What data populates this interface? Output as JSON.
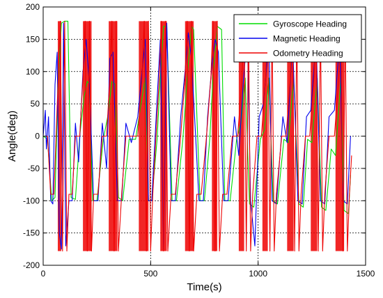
{
  "chart_data": {
    "type": "line",
    "title": "",
    "xlabel": "Time(s)",
    "ylabel": "Angle(deg)",
    "xlim": [
      0,
      1500
    ],
    "ylim": [
      -200,
      200
    ],
    "xticks": [
      0,
      500,
      1000,
      1500
    ],
    "xtick_labels": [
      "0",
      "500",
      "1000",
      "1500"
    ],
    "yticks": [
      -200,
      -150,
      -100,
      -50,
      0,
      50,
      100,
      150,
      200
    ],
    "ytick_labels": [
      "-200",
      "-150",
      "-100",
      "-50",
      "0",
      "50",
      "100",
      "150",
      "200"
    ],
    "grid": true,
    "legend_position": "top-right",
    "series": [
      {
        "name": "Gyroscope Heading",
        "color": "#00dd00",
        "points": [
          [
            0,
            0
          ],
          [
            20,
            -5
          ],
          [
            40,
            -100
          ],
          [
            55,
            -95
          ],
          [
            70,
            85
          ],
          [
            85,
            175
          ],
          [
            100,
            178
          ],
          [
            115,
            178
          ],
          [
            130,
            -95
          ],
          [
            150,
            -98
          ],
          [
            170,
            0
          ],
          [
            190,
            60
          ],
          [
            205,
            85
          ],
          [
            215,
            80
          ],
          [
            230,
            -100
          ],
          [
            250,
            -100
          ],
          [
            280,
            -5
          ],
          [
            300,
            30
          ],
          [
            320,
            85
          ],
          [
            335,
            80
          ],
          [
            350,
            -95
          ],
          [
            370,
            -100
          ],
          [
            400,
            -5
          ],
          [
            430,
            -5
          ],
          [
            460,
            60
          ],
          [
            475,
            90
          ],
          [
            490,
            -100
          ],
          [
            505,
            -100
          ],
          [
            530,
            -5
          ],
          [
            545,
            90
          ],
          [
            560,
            170
          ],
          [
            575,
            170
          ],
          [
            600,
            -100
          ],
          [
            620,
            -100
          ],
          [
            650,
            -5
          ],
          [
            670,
            90
          ],
          [
            690,
            170
          ],
          [
            700,
            165
          ],
          [
            730,
            -100
          ],
          [
            750,
            -100
          ],
          [
            775,
            -5
          ],
          [
            790,
            90
          ],
          [
            810,
            170
          ],
          [
            830,
            165
          ],
          [
            845,
            -100
          ],
          [
            870,
            -100
          ],
          [
            900,
            -5
          ],
          [
            920,
            20
          ],
          [
            940,
            90
          ],
          [
            960,
            -105
          ],
          [
            980,
            -110
          ],
          [
            1010,
            -5
          ],
          [
            1030,
            10
          ],
          [
            1050,
            90
          ],
          [
            1070,
            -100
          ],
          [
            1090,
            -105
          ],
          [
            1120,
            -5
          ],
          [
            1140,
            -10
          ],
          [
            1165,
            90
          ],
          [
            1190,
            -105
          ],
          [
            1210,
            -110
          ],
          [
            1230,
            -5
          ],
          [
            1250,
            -10
          ],
          [
            1275,
            90
          ],
          [
            1295,
            -110
          ],
          [
            1315,
            -115
          ],
          [
            1340,
            -20
          ],
          [
            1360,
            -30
          ],
          [
            1385,
            90
          ],
          [
            1400,
            -115
          ],
          [
            1420,
            -120
          ],
          [
            1430,
            -60
          ]
        ]
      },
      {
        "name": "Magnetic Heading",
        "color": "#0000ee",
        "points": [
          [
            0,
            0
          ],
          [
            10,
            40
          ],
          [
            15,
            -20
          ],
          [
            25,
            30
          ],
          [
            35,
            -100
          ],
          [
            45,
            -105
          ],
          [
            55,
            80
          ],
          [
            65,
            130
          ],
          [
            75,
            -150
          ],
          [
            85,
            -175
          ],
          [
            95,
            175
          ],
          [
            105,
            -170
          ],
          [
            120,
            -100
          ],
          [
            135,
            -100
          ],
          [
            150,
            20
          ],
          [
            165,
            -40
          ],
          [
            185,
            100
          ],
          [
            200,
            150
          ],
          [
            215,
            80
          ],
          [
            235,
            -100
          ],
          [
            255,
            -100
          ],
          [
            275,
            20
          ],
          [
            295,
            -50
          ],
          [
            310,
            120
          ],
          [
            325,
            130
          ],
          [
            345,
            -100
          ],
          [
            365,
            -100
          ],
          [
            385,
            20
          ],
          [
            410,
            -10
          ],
          [
            440,
            30
          ],
          [
            460,
            100
          ],
          [
            475,
            150
          ],
          [
            490,
            -100
          ],
          [
            505,
            -100
          ],
          [
            525,
            25
          ],
          [
            545,
            150
          ],
          [
            560,
            -175
          ],
          [
            575,
            175
          ],
          [
            595,
            -100
          ],
          [
            615,
            -100
          ],
          [
            640,
            30
          ],
          [
            660,
            100
          ],
          [
            675,
            160
          ],
          [
            690,
            120
          ],
          [
            725,
            -100
          ],
          [
            745,
            -100
          ],
          [
            765,
            30
          ],
          [
            785,
            110
          ],
          [
            800,
            150
          ],
          [
            815,
            130
          ],
          [
            840,
            -100
          ],
          [
            860,
            -100
          ],
          [
            890,
            30
          ],
          [
            910,
            -30
          ],
          [
            930,
            80
          ],
          [
            950,
            160
          ],
          [
            965,
            -100
          ],
          [
            985,
            -170
          ],
          [
            1005,
            30
          ],
          [
            1025,
            50
          ],
          [
            1050,
            150
          ],
          [
            1065,
            -100
          ],
          [
            1085,
            -105
          ],
          [
            1115,
            30
          ],
          [
            1135,
            -10
          ],
          [
            1160,
            150
          ],
          [
            1185,
            -100
          ],
          [
            1205,
            -105
          ],
          [
            1225,
            30
          ],
          [
            1245,
            40
          ],
          [
            1270,
            150
          ],
          [
            1290,
            -100
          ],
          [
            1310,
            -105
          ],
          [
            1330,
            30
          ],
          [
            1355,
            40
          ],
          [
            1380,
            150
          ],
          [
            1395,
            -100
          ],
          [
            1415,
            -105
          ],
          [
            1430,
            0
          ]
        ]
      },
      {
        "name": "Odometry Heading",
        "color": "#ee0000",
        "points": [
          [
            0,
            0
          ],
          [
            20,
            0
          ],
          [
            35,
            -90
          ],
          [
            50,
            -90
          ],
          [
            60,
            0
          ],
          [
            70,
            90
          ],
          [
            80,
            178
          ],
          [
            90,
            -178
          ],
          [
            100,
            178
          ],
          [
            110,
            -178
          ],
          [
            120,
            -90
          ],
          [
            135,
            -90
          ],
          [
            150,
            0
          ],
          [
            170,
            0
          ],
          [
            185,
            90
          ],
          [
            195,
            178
          ],
          [
            205,
            -178
          ],
          [
            215,
            178
          ],
          [
            225,
            -178
          ],
          [
            235,
            -90
          ],
          [
            255,
            -90
          ],
          [
            275,
            0
          ],
          [
            295,
            0
          ],
          [
            310,
            90
          ],
          [
            320,
            178
          ],
          [
            330,
            -178
          ],
          [
            340,
            178
          ],
          [
            350,
            -178
          ],
          [
            365,
            -90
          ],
          [
            385,
            0
          ],
          [
            410,
            0
          ],
          [
            440,
            0
          ],
          [
            460,
            90
          ],
          [
            470,
            178
          ],
          [
            480,
            -178
          ],
          [
            490,
            178
          ],
          [
            500,
            -178
          ],
          [
            510,
            -90
          ],
          [
            525,
            0
          ],
          [
            540,
            90
          ],
          [
            550,
            178
          ],
          [
            560,
            -178
          ],
          [
            570,
            178
          ],
          [
            580,
            -178
          ],
          [
            595,
            -90
          ],
          [
            615,
            -90
          ],
          [
            640,
            0
          ],
          [
            660,
            90
          ],
          [
            670,
            178
          ],
          [
            680,
            -178
          ],
          [
            690,
            178
          ],
          [
            700,
            -178
          ],
          [
            715,
            -90
          ],
          [
            735,
            -90
          ],
          [
            760,
            0
          ],
          [
            780,
            90
          ],
          [
            790,
            178
          ],
          [
            800,
            -178
          ],
          [
            810,
            178
          ],
          [
            820,
            -178
          ],
          [
            835,
            -90
          ],
          [
            855,
            -90
          ],
          [
            880,
            0
          ],
          [
            905,
            0
          ],
          [
            925,
            90
          ],
          [
            935,
            178
          ],
          [
            945,
            -178
          ],
          [
            955,
            178
          ],
          [
            965,
            -178
          ],
          [
            975,
            -90
          ],
          [
            995,
            0
          ],
          [
            1015,
            0
          ],
          [
            1035,
            90
          ],
          [
            1045,
            178
          ],
          [
            1055,
            -178
          ],
          [
            1065,
            178
          ],
          [
            1075,
            -178
          ],
          [
            1085,
            -90
          ],
          [
            1110,
            0
          ],
          [
            1130,
            0
          ],
          [
            1150,
            90
          ],
          [
            1160,
            178
          ],
          [
            1170,
            -178
          ],
          [
            1180,
            178
          ],
          [
            1190,
            -178
          ],
          [
            1200,
            -90
          ],
          [
            1220,
            0
          ],
          [
            1240,
            0
          ],
          [
            1260,
            90
          ],
          [
            1270,
            178
          ],
          [
            1280,
            -178
          ],
          [
            1290,
            178
          ],
          [
            1300,
            -178
          ],
          [
            1310,
            -90
          ],
          [
            1330,
            0
          ],
          [
            1355,
            0
          ],
          [
            1375,
            90
          ],
          [
            1385,
            178
          ],
          [
            1395,
            -178
          ],
          [
            1405,
            178
          ],
          [
            1415,
            -178
          ],
          [
            1425,
            -90
          ],
          [
            1435,
            -30
          ]
        ]
      }
    ],
    "filled_bands": [
      {
        "series": "Odometry Heading",
        "x_start": 68,
        "x_end": 84
      },
      {
        "series": "Odometry Heading",
        "x_start": 185,
        "x_end": 225
      },
      {
        "series": "Odometry Heading",
        "x_start": 305,
        "x_end": 345
      },
      {
        "series": "Odometry Heading",
        "x_start": 445,
        "x_end": 490
      },
      {
        "series": "Odometry Heading",
        "x_start": 545,
        "x_end": 575
      },
      {
        "series": "Odometry Heading",
        "x_start": 660,
        "x_end": 700
      },
      {
        "series": "Odometry Heading",
        "x_start": 785,
        "x_end": 810
      },
      {
        "series": "Odometry Heading",
        "x_start": 910,
        "x_end": 935
      },
      {
        "series": "Odometry Heading",
        "x_start": 1020,
        "x_end": 1045
      },
      {
        "series": "Odometry Heading",
        "x_start": 1135,
        "x_end": 1165
      },
      {
        "series": "Odometry Heading",
        "x_start": 1245,
        "x_end": 1275
      },
      {
        "series": "Odometry Heading",
        "x_start": 1360,
        "x_end": 1400
      }
    ]
  }
}
